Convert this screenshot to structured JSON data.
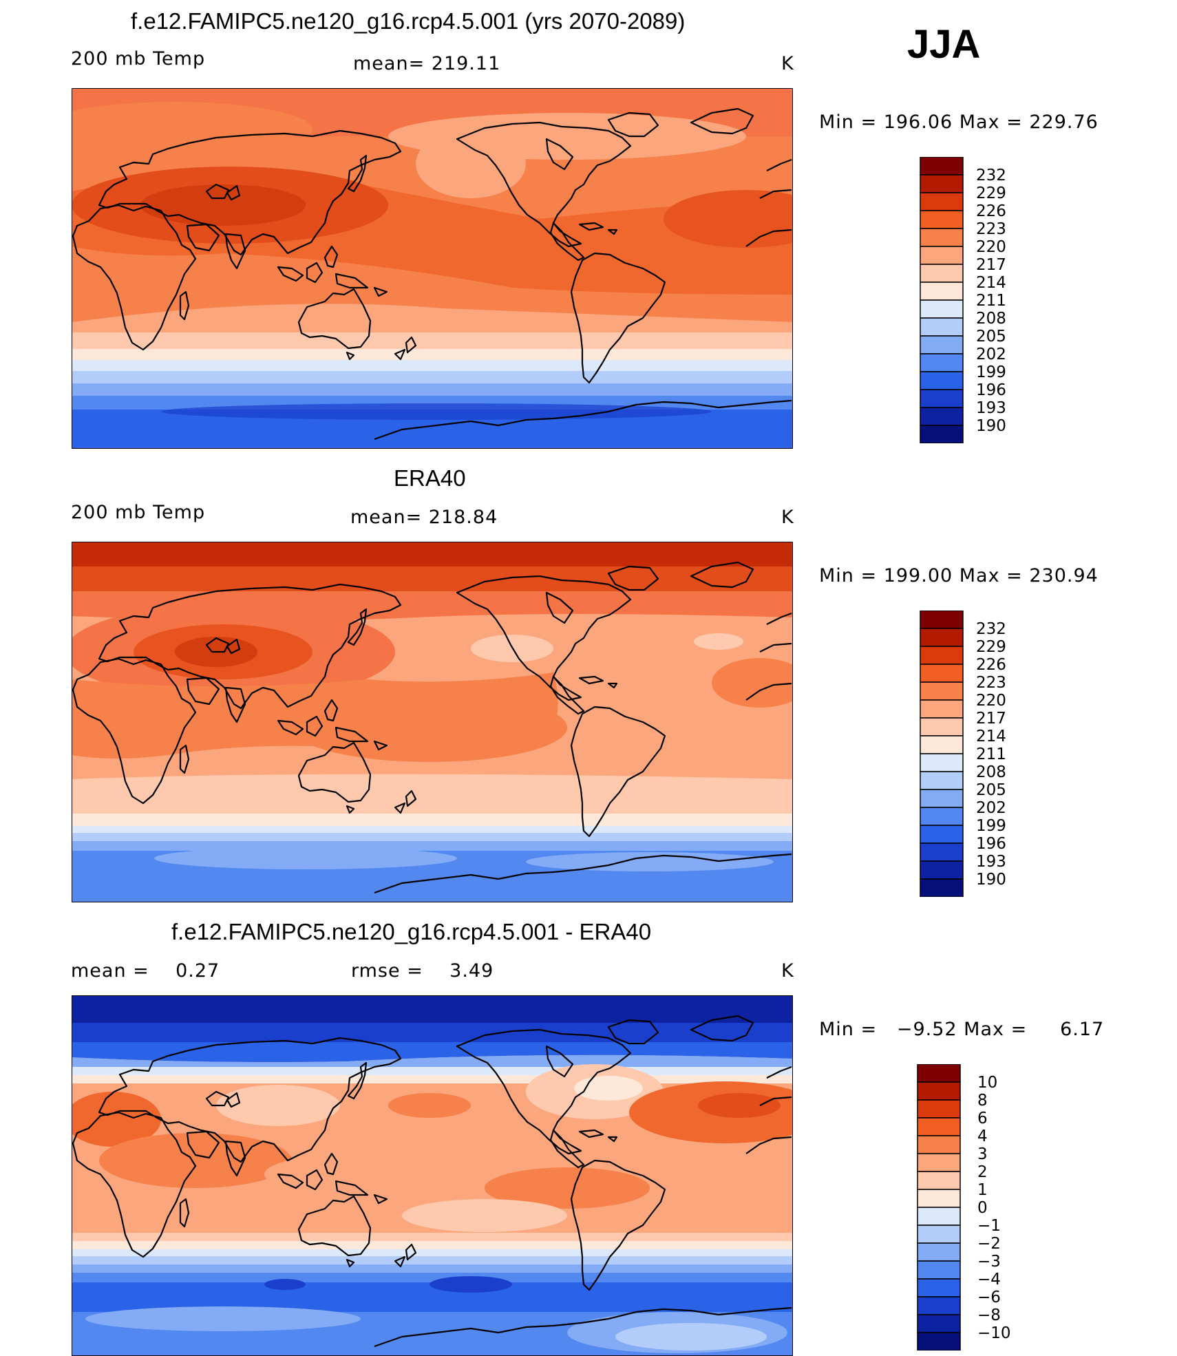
{
  "season": "JJA",
  "panels": [
    {
      "id": "model",
      "title": "f.e12.FAMIPC5.ne120_g16.rcp4.5.001 (yrs 2070-2089)",
      "left_label": "200 mb Temp",
      "center_label": "mean= 219.11",
      "units": "K",
      "minmax": "Min = 196.06 Max = 229.76",
      "colorbar_labels": [
        "232",
        "229",
        "226",
        "223",
        "220",
        "217",
        "214",
        "211",
        "208",
        "205",
        "202",
        "199",
        "196",
        "193",
        "190"
      ]
    },
    {
      "id": "obs",
      "title": "ERA40",
      "left_label": "200 mb Temp",
      "center_label": "mean= 218.84",
      "units": "K",
      "minmax": "Min = 199.00 Max = 230.94",
      "colorbar_labels": [
        "232",
        "229",
        "226",
        "223",
        "220",
        "217",
        "214",
        "211",
        "208",
        "205",
        "202",
        "199",
        "196",
        "193",
        "190"
      ]
    },
    {
      "id": "diff",
      "title": "f.e12.FAMIPC5.ne120_g16.rcp4.5.001 - ERA40",
      "left_label": "mean =    0.27",
      "center_label": "rmse =    3.49",
      "units": "K",
      "minmax": "Min =   −9.52 Max =     6.17",
      "colorbar_labels": [
        "10",
        "8",
        "6",
        "4",
        "3",
        "2",
        "1",
        "0",
        "−1",
        "−2",
        "−3",
        "−4",
        "−6",
        "−8",
        "−10"
      ]
    }
  ],
  "colorbar_colors": [
    "#7f0000",
    "#b31b00",
    "#db3a0c",
    "#f15f22",
    "#f7814a",
    "#fba67c",
    "#fec9ad",
    "#fee8da",
    "#dbe9fb",
    "#b3cdfa",
    "#84abf5",
    "#5288ef",
    "#2a63e8",
    "#1a3fcd",
    "#0d22a0",
    "#05107a"
  ]
}
